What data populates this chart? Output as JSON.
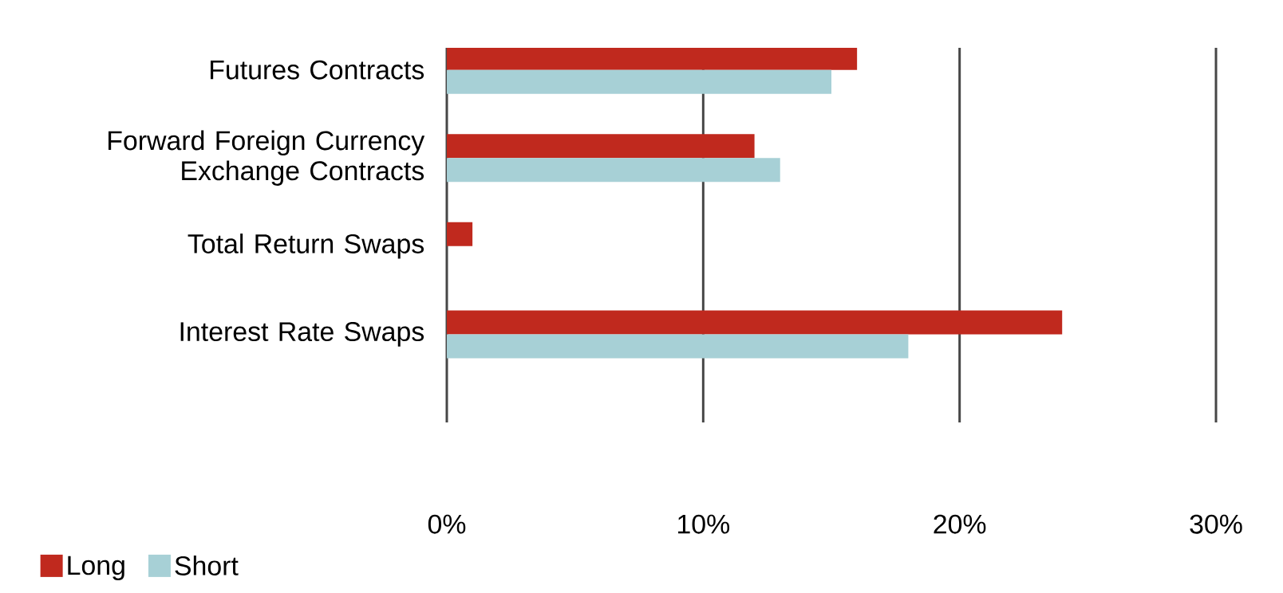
{
  "chart_data": {
    "type": "bar",
    "orientation": "horizontal",
    "categories": [
      "Futures Contracts",
      "Forward Foreign Currency Exchange Contracts",
      "Total Return Swaps",
      "Interest Rate Swaps"
    ],
    "series": [
      {
        "name": "Long",
        "color": "#c0291e",
        "values": [
          16,
          12,
          1,
          24
        ]
      },
      {
        "name": "Short",
        "color": "#a7d0d6",
        "values": [
          15,
          13,
          null,
          18
        ]
      }
    ],
    "xlim": [
      0,
      30
    ],
    "xticks": [
      {
        "value": 0,
        "label": "0%"
      },
      {
        "value": 10,
        "label": "10%"
      },
      {
        "value": 20,
        "label": "20%"
      },
      {
        "value": 30,
        "label": "30%"
      }
    ],
    "grid": "x",
    "legend": "bottom left"
  }
}
